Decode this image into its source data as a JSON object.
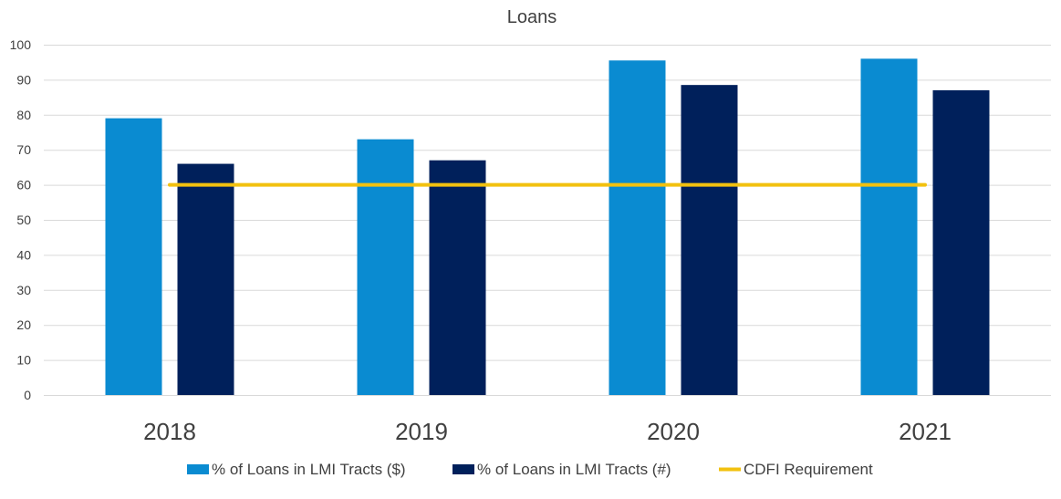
{
  "chart_data": {
    "type": "bar",
    "title": "Loans",
    "xlabel": "",
    "ylabel": "",
    "categories": [
      "2018",
      "2019",
      "2020",
      "2021"
    ],
    "ylim": [
      0,
      100
    ],
    "yticks": [
      0,
      10,
      20,
      30,
      40,
      50,
      60,
      70,
      80,
      90,
      100
    ],
    "grid": true,
    "legend_position": "bottom",
    "series": [
      {
        "name": "% of Loans in LMI Tracts ($)",
        "type": "bar",
        "color": "#0a8bd1",
        "values": [
          79,
          73,
          95.5,
          96
        ]
      },
      {
        "name": "% of Loans in LMI Tracts (#)",
        "type": "bar",
        "color": "#00205b",
        "values": [
          66,
          67,
          88.5,
          87
        ]
      },
      {
        "name": "CDFI Requirement",
        "type": "line",
        "color": "#f2c10f",
        "values": [
          60,
          60,
          60,
          60
        ]
      }
    ]
  }
}
